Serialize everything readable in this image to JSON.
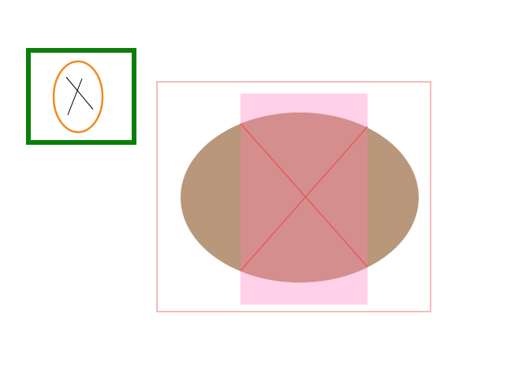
{
  "palette": {
    "background": "#ffffff",
    "thumbnail_frame": "#0a7f0a",
    "thumbnail_ellipse": "#f08a1c",
    "thumbnail_cross": "#000000",
    "main_frame": "#f4a4a4",
    "pink_rect": "#ffd0e8",
    "ellipse_fill": "#b8977a",
    "overlap_fill": "#d48e8e",
    "cross_lines": "#e85a5a"
  }
}
